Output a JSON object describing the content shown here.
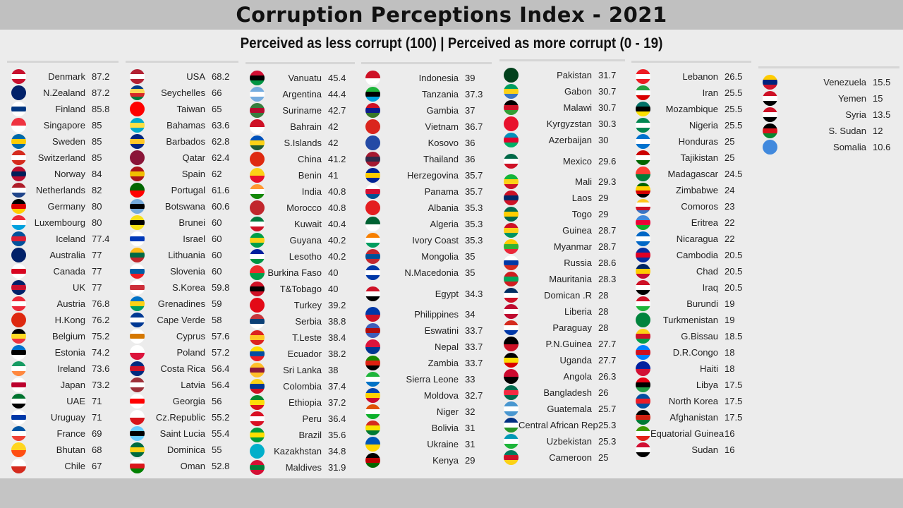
{
  "title": "Corruption Perceptions Index - 2021",
  "subtitle": "Perceived as less corrupt (100) | Perceived as more corrupt (0 - 19)",
  "columns": [
    [
      [
        "Denmark",
        "87.2",
        [
          "#c8102e",
          "#fff",
          "#c8102e"
        ]
      ],
      [
        "N.Zealand",
        "87.2",
        [
          "#012169",
          "#012169"
        ]
      ],
      [
        "Finland",
        "85.8",
        [
          "#fff",
          "#003580",
          "#fff"
        ]
      ],
      [
        "Singapore",
        "85",
        [
          "#ef3340",
          "#fff"
        ]
      ],
      [
        "Sweden",
        "85",
        [
          "#006aa7",
          "#fecc00",
          "#006aa7"
        ]
      ],
      [
        "Switzerland",
        "85",
        [
          "#d52b1e",
          "#fff",
          "#d52b1e"
        ]
      ],
      [
        "Norway",
        "84",
        [
          "#ba0c2f",
          "#00205b",
          "#ba0c2f"
        ]
      ],
      [
        "Netherlands",
        "82",
        [
          "#ae1c28",
          "#fff",
          "#21468b"
        ]
      ],
      [
        "Germany",
        "80",
        [
          "#000",
          "#dd0000",
          "#ffce00"
        ]
      ],
      [
        "Luxembourg",
        "80",
        [
          "#ed2939",
          "#fff",
          "#00a1de"
        ]
      ],
      [
        "Iceland",
        "77.4",
        [
          "#02529c",
          "#dc1e35",
          "#02529c"
        ]
      ],
      [
        "Australia",
        "77",
        [
          "#012169",
          "#012169"
        ]
      ],
      [
        "Canada",
        "77",
        [
          "#fff",
          "#d80621",
          "#fff"
        ]
      ],
      [
        "UK",
        "77",
        [
          "#012169",
          "#c8102e",
          "#012169"
        ]
      ],
      [
        "Austria",
        "76.8",
        [
          "#ed2939",
          "#fff",
          "#ed2939"
        ]
      ],
      [
        "H.Kong",
        "76.2",
        [
          "#de2910",
          "#de2910"
        ]
      ],
      [
        "Belgium",
        "75.2",
        [
          "#000",
          "#fdda24",
          "#ef3340"
        ]
      ],
      [
        "Estonia",
        "74.2",
        [
          "#0072ce",
          "#000",
          "#fff"
        ]
      ],
      [
        "Ireland",
        "73.6",
        [
          "#169b62",
          "#fff",
          "#ff883e"
        ]
      ],
      [
        "Japan",
        "73.2",
        [
          "#fff",
          "#bc002d",
          "#fff"
        ]
      ],
      [
        "UAE",
        "71",
        [
          "#00732f",
          "#fff",
          "#000"
        ]
      ],
      [
        "Uruguay",
        "71",
        [
          "#fff",
          "#0038a8",
          "#fff"
        ]
      ],
      [
        "France",
        "69",
        [
          "#0055a4",
          "#fff",
          "#ef4135"
        ]
      ],
      [
        "Bhutan",
        "68",
        [
          "#ffd520",
          "#ff4e12"
        ]
      ],
      [
        "Chile",
        "67",
        [
          "#fff",
          "#d52b1e"
        ]
      ]
    ],
    [
      [
        "USA",
        "68.2",
        [
          "#b22234",
          "#fff",
          "#b22234"
        ]
      ],
      [
        "Seychelles",
        "66",
        [
          "#003f87",
          "#fcd856",
          "#d62828",
          "#007a3d"
        ]
      ],
      [
        "Taiwan",
        "65",
        [
          "#fe0000",
          "#fe0000"
        ]
      ],
      [
        "Bahamas",
        "63.6",
        [
          "#00abc9",
          "#fae042",
          "#00abc9"
        ]
      ],
      [
        "Barbados",
        "62.8",
        [
          "#00267f",
          "#ffc726",
          "#00267f"
        ]
      ],
      [
        "Qatar",
        "62.4",
        [
          "#8a1538",
          "#8a1538"
        ]
      ],
      [
        "Spain",
        "62",
        [
          "#aa151b",
          "#f1bf00",
          "#aa151b"
        ]
      ],
      [
        "Portugal",
        "61.6",
        [
          "#006600",
          "#ff0000"
        ]
      ],
      [
        "Botswana",
        "60.6",
        [
          "#75aadb",
          "#000",
          "#75aadb"
        ]
      ],
      [
        "Brunei",
        "60",
        [
          "#f7e017",
          "#000",
          "#f7e017"
        ]
      ],
      [
        "Israel",
        "60",
        [
          "#fff",
          "#0038b8",
          "#fff"
        ]
      ],
      [
        "Lithuania",
        "60",
        [
          "#fdb913",
          "#006a44",
          "#c1272d"
        ]
      ],
      [
        "Slovenia",
        "60",
        [
          "#fff",
          "#005da4",
          "#ed1c24"
        ]
      ],
      [
        "S.Korea",
        "59.8",
        [
          "#fff",
          "#cd2e3a",
          "#fff"
        ]
      ],
      [
        "Grenadines",
        "59",
        [
          "#0072c6",
          "#fcd116",
          "#009e60"
        ]
      ],
      [
        "Cape Verde",
        "58",
        [
          "#003893",
          "#fff",
          "#003893"
        ]
      ],
      [
        "Cyprus",
        "57.6",
        [
          "#fff",
          "#d57800",
          "#fff"
        ]
      ],
      [
        "Poland",
        "57.2",
        [
          "#fff",
          "#dc143c"
        ]
      ],
      [
        "Costa Rica",
        "56.4",
        [
          "#002b7f",
          "#ce1126",
          "#002b7f"
        ]
      ],
      [
        "Latvia",
        "56.4",
        [
          "#9e3039",
          "#fff",
          "#9e3039"
        ]
      ],
      [
        "Georgia",
        "56",
        [
          "#fff",
          "#ff0000",
          "#fff"
        ]
      ],
      [
        "Cz.Republic",
        "55.2",
        [
          "#fff",
          "#d7141a"
        ]
      ],
      [
        "Saint Lucia",
        "55.4",
        [
          "#66ccff",
          "#000",
          "#66ccff"
        ]
      ],
      [
        "Dominica",
        "55",
        [
          "#006b3f",
          "#fcd116",
          "#006b3f"
        ]
      ],
      [
        "Oman",
        "52.8",
        [
          "#fff",
          "#db161b",
          "#008000"
        ]
      ]
    ],
    [
      [
        "Vanuatu",
        "45.4",
        [
          "#d21034",
          "#000",
          "#009543"
        ]
      ],
      [
        "Argentina",
        "44.4",
        [
          "#74acdf",
          "#fff",
          "#74acdf"
        ]
      ],
      [
        "Suriname",
        "42.7",
        [
          "#377e3f",
          "#b40a2d",
          "#377e3f"
        ]
      ],
      [
        "Bahrain",
        "42",
        [
          "#ce1126",
          "#fff"
        ]
      ],
      [
        "S.Islands",
        "42",
        [
          "#0051ba",
          "#fcd116",
          "#215b33"
        ]
      ],
      [
        "China",
        "41.2",
        [
          "#de2910",
          "#de2910"
        ]
      ],
      [
        "Benin",
        "41",
        [
          "#fcd116",
          "#e8112d"
        ]
      ],
      [
        "India",
        "40.8",
        [
          "#ff9933",
          "#fff",
          "#138808"
        ]
      ],
      [
        "Morocco",
        "40.8",
        [
          "#c1272d",
          "#c1272d"
        ]
      ],
      [
        "Kuwait",
        "40.4",
        [
          "#007a3d",
          "#fff",
          "#ce1126"
        ]
      ],
      [
        "Guyana",
        "40.2",
        [
          "#009e49",
          "#fcd116",
          "#009e49"
        ]
      ],
      [
        "Lesotho",
        "40.2",
        [
          "#00209f",
          "#fff",
          "#009543"
        ]
      ],
      [
        "Burkina Faso",
        "40",
        [
          "#ef2b2d",
          "#009e49"
        ]
      ],
      [
        "T&Tobago",
        "40",
        [
          "#ce1126",
          "#000",
          "#ce1126"
        ]
      ],
      [
        "Turkey",
        "39.2",
        [
          "#e30a17",
          "#e30a17"
        ]
      ],
      [
        "Serbia",
        "38.8",
        [
          "#c6363c",
          "#0c4076",
          "#fff"
        ]
      ],
      [
        "T.Leste",
        "38.4",
        [
          "#dc241f",
          "#ffc726",
          "#dc241f"
        ]
      ],
      [
        "Ecuador",
        "38.2",
        [
          "#ffdd00",
          "#034ea2",
          "#ed1c24"
        ]
      ],
      [
        "Sri Lanka",
        "38",
        [
          "#ffbe29",
          "#8d153a",
          "#ffbe29"
        ]
      ],
      [
        "Colombia",
        "37.4",
        [
          "#fcd116",
          "#003893",
          "#ce1126"
        ]
      ],
      [
        "Ethiopia",
        "37.2",
        [
          "#078930",
          "#fcdd09",
          "#da121a"
        ]
      ],
      [
        "Peru",
        "36.4",
        [
          "#d91023",
          "#fff",
          "#d91023"
        ]
      ],
      [
        "Brazil",
        "35.6",
        [
          "#009c3b",
          "#ffdf00",
          "#009c3b"
        ]
      ],
      [
        "Kazakhstan",
        "34.8",
        [
          "#00afca",
          "#00afca"
        ]
      ],
      [
        "Maldives",
        "31.9",
        [
          "#d21034",
          "#007e3a",
          "#d21034"
        ]
      ]
    ],
    [
      [
        "Indonesia",
        "39",
        [
          "#ce1126",
          "#fff"
        ]
      ],
      [
        "Tanzania",
        "37.3",
        [
          "#1eb53a",
          "#000",
          "#00a3dd"
        ]
      ],
      [
        "Gambia",
        "37",
        [
          "#ce1126",
          "#0c1c8c",
          "#3a7728"
        ]
      ],
      [
        "Vietnam",
        "36.7",
        [
          "#da251d",
          "#da251d"
        ]
      ],
      [
        "Kosovo",
        "36",
        [
          "#244aa5",
          "#244aa5"
        ]
      ],
      [
        "Thailand",
        "36",
        [
          "#a51931",
          "#2d2a4a",
          "#a51931"
        ]
      ],
      [
        "Herzegovina",
        "35.7",
        [
          "#002395",
          "#fecb00",
          "#002395"
        ]
      ],
      [
        "Panama",
        "35.7",
        [
          "#fff",
          "#d21034",
          "#005293"
        ]
      ],
      [
        "Albania",
        "35.3",
        [
          "#e41e20",
          "#e41e20"
        ]
      ],
      [
        "Algeria",
        "35.3",
        [
          "#006233",
          "#fff"
        ]
      ],
      [
        "Ivory Coast",
        "35.3",
        [
          "#f77f00",
          "#fff",
          "#009e60"
        ]
      ],
      [
        "Mongolia",
        "35",
        [
          "#c4272f",
          "#015197",
          "#c4272f"
        ]
      ],
      [
        "N.Macedonia",
        "35",
        [
          "#0038a8",
          "#fff",
          "#0038a8"
        ]
      ],
      [
        "Egypt",
        "34.3",
        [
          "#ce1126",
          "#fff",
          "#000"
        ]
      ],
      [
        "Philippines",
        "34",
        [
          "#0038a8",
          "#ce1126"
        ]
      ],
      [
        "Eswatini",
        "33.7",
        [
          "#3e5eb9",
          "#b10c0c",
          "#3e5eb9"
        ]
      ],
      [
        "Nepal",
        "33.7",
        [
          "#dc143c",
          "#003893"
        ]
      ],
      [
        "Zambia",
        "33.7",
        [
          "#198a00",
          "#de2010",
          "#000"
        ]
      ],
      [
        "Sierra Leone",
        "33",
        [
          "#1eb53a",
          "#fff",
          "#0072c6"
        ]
      ],
      [
        "Moldova",
        "32.7",
        [
          "#0046ae",
          "#ffd200",
          "#cc092f"
        ]
      ],
      [
        "Niger",
        "32",
        [
          "#e05206",
          "#fff",
          "#0db02b"
        ]
      ],
      [
        "Bolivia",
        "31",
        [
          "#d52b1e",
          "#f9e300",
          "#007934"
        ]
      ],
      [
        "Ukraine",
        "31",
        [
          "#0057b7",
          "#ffd700"
        ]
      ],
      [
        "Kenya",
        "29",
        [
          "#000",
          "#bb0000",
          "#006600"
        ]
      ]
    ],
    [
      [
        "Pakistan",
        "31.7",
        [
          "#01411c",
          "#01411c"
        ]
      ],
      [
        "Gabon",
        "30.7",
        [
          "#009e60",
          "#fcd116",
          "#3a75c4"
        ]
      ],
      [
        "Malawi",
        "30.7",
        [
          "#000",
          "#ce1126",
          "#339e35"
        ]
      ],
      [
        "Kyrgyzstan",
        "30.3",
        [
          "#e8112d",
          "#e8112d"
        ]
      ],
      [
        "Azerbaijan",
        "30",
        [
          "#0092bc",
          "#e4002b",
          "#00af66"
        ]
      ],
      [
        "Mexico",
        "29.6",
        [
          "#006847",
          "#fff",
          "#ce1126"
        ]
      ],
      [
        "Mali",
        "29.3",
        [
          "#14b53a",
          "#fcd116",
          "#ce1126"
        ]
      ],
      [
        "Laos",
        "29",
        [
          "#ce1126",
          "#002868",
          "#ce1126"
        ]
      ],
      [
        "Togo",
        "29",
        [
          "#006a4e",
          "#ffce00",
          "#006a4e"
        ]
      ],
      [
        "Guinea",
        "28.7",
        [
          "#ce1126",
          "#fcd116",
          "#009460"
        ]
      ],
      [
        "Myanmar",
        "28.7",
        [
          "#fecb00",
          "#34b233",
          "#ea2839"
        ]
      ],
      [
        "Russia",
        "28.6",
        [
          "#fff",
          "#0039a6",
          "#d52b1e"
        ]
      ],
      [
        "Mauritania",
        "28.3",
        [
          "#d01c1f",
          "#00a95c",
          "#d01c1f"
        ]
      ],
      [
        "Domican .R",
        "28",
        [
          "#002d62",
          "#fff",
          "#ce1126"
        ]
      ],
      [
        "Liberia",
        "28",
        [
          "#bf0a30",
          "#fff",
          "#bf0a30"
        ]
      ],
      [
        "Paraguay",
        "28",
        [
          "#d52b1e",
          "#fff",
          "#0038a8"
        ]
      ],
      [
        "P.N.Guinea",
        "27.7",
        [
          "#000",
          "#ce1126"
        ]
      ],
      [
        "Uganda",
        "27.7",
        [
          "#000",
          "#fcdc04",
          "#d90000"
        ]
      ],
      [
        "Angola",
        "26.3",
        [
          "#cc092f",
          "#000"
        ]
      ],
      [
        "Bangladesh",
        "26",
        [
          "#006a4e",
          "#f42a41",
          "#006a4e"
        ]
      ],
      [
        "Guatemala",
        "25.7",
        [
          "#4997d0",
          "#fff",
          "#4997d0"
        ]
      ],
      [
        "Central African Republic",
        "25.3",
        [
          "#003082",
          "#fff",
          "#289728"
        ]
      ],
      [
        "Uzbekistan",
        "25.3",
        [
          "#0099b5",
          "#fff",
          "#1eb53a"
        ]
      ],
      [
        "Cameroon",
        "25",
        [
          "#007a5e",
          "#ce1126",
          "#fcd116"
        ]
      ]
    ],
    [
      [
        "Lebanon",
        "26.5",
        [
          "#ed1c24",
          "#fff",
          "#ed1c24"
        ]
      ],
      [
        "Iran",
        "25.5",
        [
          "#239f40",
          "#fff",
          "#da0000"
        ]
      ],
      [
        "Mozambique",
        "25.5",
        [
          "#007168",
          "#000",
          "#fce100"
        ]
      ],
      [
        "Nigeria",
        "25.5",
        [
          "#008751",
          "#fff",
          "#008751"
        ]
      ],
      [
        "Honduras",
        "25",
        [
          "#0073cf",
          "#fff",
          "#0073cf"
        ]
      ],
      [
        "Tajikistan",
        "25",
        [
          "#cc0000",
          "#fff",
          "#006600"
        ]
      ],
      [
        "Madagascar",
        "24.5",
        [
          "#fc3d32",
          "#007e3a"
        ]
      ],
      [
        "Zimbabwe",
        "24",
        [
          "#006400",
          "#ffd200",
          "#d40000",
          "#000"
        ]
      ],
      [
        "Comoros",
        "23",
        [
          "#ffc61e",
          "#fff",
          "#ce1126",
          "#3a75c4"
        ]
      ],
      [
        "Eritrea",
        "22",
        [
          "#4189dd",
          "#ea0437",
          "#12ad2b"
        ]
      ],
      [
        "Nicaragua",
        "22",
        [
          "#0067c6",
          "#fff",
          "#0067c6"
        ]
      ],
      [
        "Cambodia",
        "20.5",
        [
          "#032ea1",
          "#e00025",
          "#032ea1"
        ]
      ],
      [
        "Chad",
        "20.5",
        [
          "#002664",
          "#fecb00",
          "#c60c30"
        ]
      ],
      [
        "Iraq",
        "20.5",
        [
          "#ce1126",
          "#fff",
          "#000"
        ]
      ],
      [
        "Burundi",
        "19",
        [
          "#ce1126",
          "#fff",
          "#1eb53a"
        ]
      ],
      [
        "Turkmenistan",
        "19",
        [
          "#00843d",
          "#00843d"
        ]
      ],
      [
        "G.Bissau",
        "18.5",
        [
          "#fcd116",
          "#ce1126",
          "#009e49"
        ]
      ],
      [
        "D.R.Congo",
        "18",
        [
          "#007fff",
          "#ce1021",
          "#007fff"
        ]
      ],
      [
        "Haiti",
        "18",
        [
          "#00209f",
          "#d21034"
        ]
      ],
      [
        "Libya",
        "17.5",
        [
          "#e70013",
          "#000",
          "#239e46"
        ]
      ],
      [
        "North Korea",
        "17.5",
        [
          "#024fa2",
          "#ed1c27",
          "#024fa2"
        ]
      ],
      [
        "Afghanistan",
        "17.5",
        [
          "#000",
          "#d32011",
          "#007a36"
        ]
      ],
      [
        "Equatorial Guinea",
        "16",
        [
          "#3e9a00",
          "#fff",
          "#e32118"
        ]
      ],
      [
        "Sudan",
        "16",
        [
          "#d21034",
          "#fff",
          "#000"
        ]
      ]
    ],
    [
      [
        "Venezuela",
        "15.5",
        [
          "#ffcc00",
          "#00247d",
          "#cf142b"
        ]
      ],
      [
        "Yemen",
        "15",
        [
          "#ce1126",
          "#fff",
          "#000"
        ]
      ],
      [
        "Syria",
        "13.5",
        [
          "#ce1126",
          "#fff",
          "#000"
        ]
      ],
      [
        "S. Sudan",
        "12",
        [
          "#000",
          "#da121a",
          "#078930"
        ]
      ],
      [
        "Somalia",
        "10.6",
        [
          "#4189dd",
          "#4189dd"
        ]
      ]
    ]
  ]
}
